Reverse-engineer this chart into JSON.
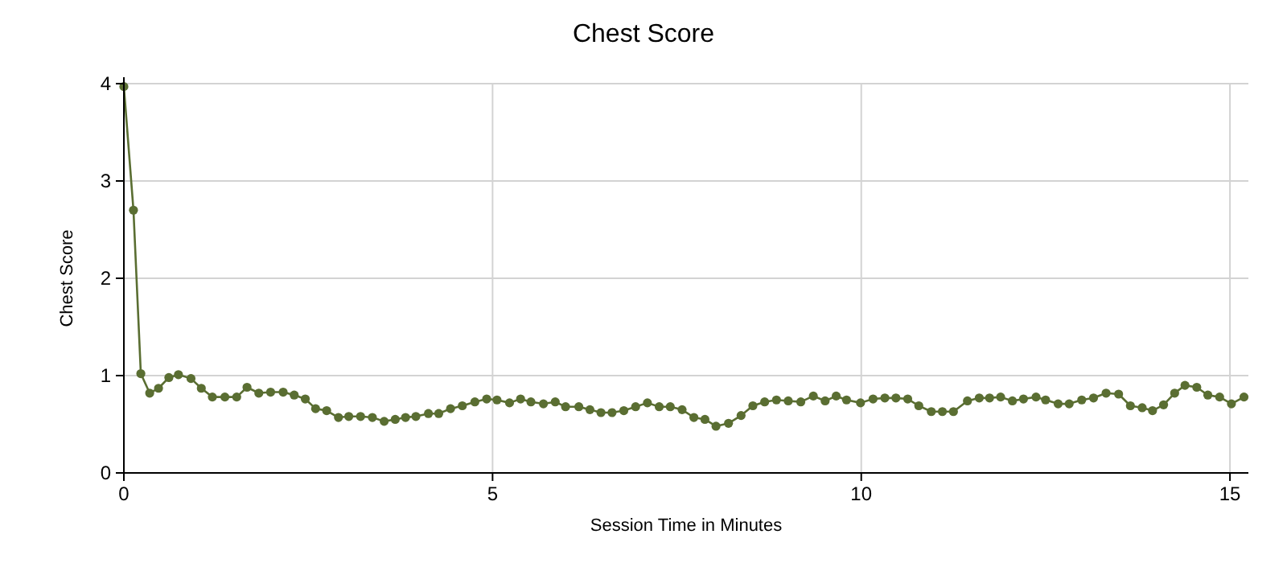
{
  "chart_data": {
    "type": "line",
    "title": "Chest Score",
    "xlabel": "Session Time in Minutes",
    "ylabel": "Chest Score",
    "xlim": [
      0,
      15.25
    ],
    "xticks": [
      0,
      5,
      10,
      15
    ],
    "ylim": [
      0,
      4
    ],
    "yticks": [
      0,
      1,
      2,
      3,
      4
    ],
    "grid": true,
    "marker": "circle",
    "line_style": "solid",
    "series": [
      {
        "color": "#5a6e32",
        "x": [
          0,
          0.13,
          0.23,
          0.35,
          0.47,
          0.61,
          0.74,
          0.91,
          1.05,
          1.2,
          1.37,
          1.53,
          1.67,
          1.83,
          1.99,
          2.16,
          2.31,
          2.46,
          2.6,
          2.75,
          2.91,
          3.05,
          3.21,
          3.37,
          3.53,
          3.68,
          3.82,
          3.96,
          4.13,
          4.27,
          4.43,
          4.59,
          4.76,
          4.92,
          5.06,
          5.23,
          5.38,
          5.52,
          5.69,
          5.85,
          5.99,
          6.17,
          6.32,
          6.47,
          6.62,
          6.78,
          6.94,
          7.1,
          7.26,
          7.41,
          7.57,
          7.73,
          7.88,
          8.03,
          8.2,
          8.37,
          8.53,
          8.69,
          8.85,
          9.01,
          9.18,
          9.35,
          9.51,
          9.66,
          9.8,
          9.99,
          10.16,
          10.32,
          10.47,
          10.63,
          10.78,
          10.95,
          11.1,
          11.25,
          11.44,
          11.6,
          11.74,
          11.89,
          12.05,
          12.2,
          12.37,
          12.5,
          12.67,
          12.82,
          12.99,
          13.15,
          13.32,
          13.49,
          13.65,
          13.81,
          13.95,
          14.1,
          14.25,
          14.39,
          14.55,
          14.7,
          14.86,
          15.02,
          15.19
        ],
        "values": [
          3.97,
          2.7,
          1.02,
          0.82,
          0.87,
          0.98,
          1.01,
          0.97,
          0.87,
          0.78,
          0.78,
          0.78,
          0.88,
          0.82,
          0.83,
          0.83,
          0.8,
          0.76,
          0.66,
          0.64,
          0.57,
          0.58,
          0.58,
          0.57,
          0.53,
          0.55,
          0.57,
          0.58,
          0.61,
          0.61,
          0.66,
          0.69,
          0.73,
          0.76,
          0.75,
          0.72,
          0.76,
          0.73,
          0.71,
          0.73,
          0.68,
          0.68,
          0.65,
          0.62,
          0.62,
          0.64,
          0.68,
          0.72,
          0.68,
          0.68,
          0.65,
          0.57,
          0.55,
          0.48,
          0.51,
          0.59,
          0.69,
          0.73,
          0.75,
          0.74,
          0.73,
          0.79,
          0.74,
          0.79,
          0.75,
          0.72,
          0.76,
          0.77,
          0.77,
          0.76,
          0.69,
          0.63,
          0.63,
          0.63,
          0.74,
          0.77,
          0.77,
          0.78,
          0.74,
          0.76,
          0.78,
          0.75,
          0.71,
          0.71,
          0.75,
          0.77,
          0.82,
          0.81,
          0.69,
          0.67,
          0.64,
          0.7,
          0.82,
          0.9,
          0.88,
          0.8,
          0.78,
          0.71,
          0.78
        ]
      }
    ]
  }
}
